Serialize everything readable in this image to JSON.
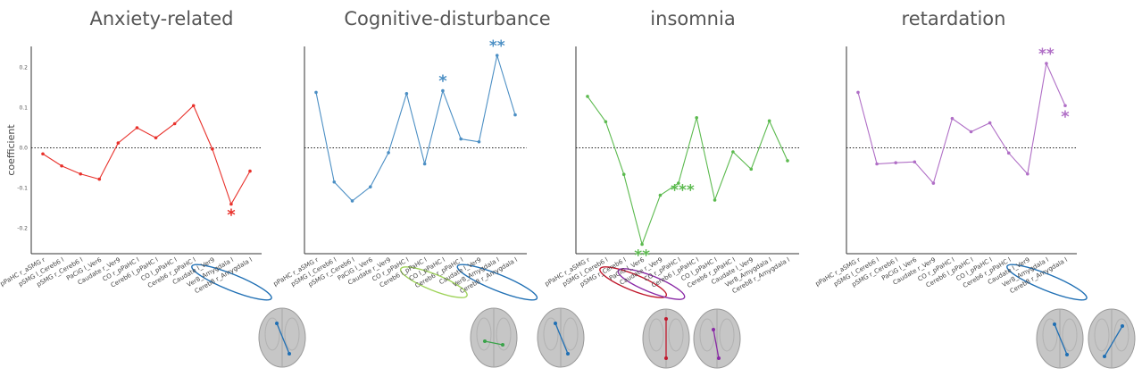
{
  "chart_data": [
    {
      "type": "line",
      "title": "Anxiety-related",
      "ylabel": "coefficient",
      "yticks": [
        "0.2",
        "0.1",
        "0.0",
        "-0.1",
        "-0.2"
      ],
      "ylim": [
        -0.26,
        0.25
      ],
      "color": "#e8312b",
      "x": [
        "pPaHC r_aSMG r",
        "pSMG l_Cereb6 l",
        "pSMG r_Cereb6 l",
        "PaCiG l_Ver6",
        "Caudate r_Ver9",
        "CO r_pPaHC l",
        "Cereb6 l_pPaHC l",
        "CO l_pPaHC l",
        "Cereb6 r_pPaHC l",
        "Caudate l_Ver9",
        "Ver8_Amygdala l",
        "Cereb8 r_Amygdala l"
      ],
      "values": [
        -0.015,
        -0.045,
        -0.065,
        -0.078,
        0.012,
        0.05,
        0.025,
        0.06,
        0.105,
        -0.003,
        -0.14,
        -0.058
      ],
      "annotations": [
        {
          "index": 10,
          "text": "*",
          "placement": "below"
        }
      ],
      "highlighted": [
        10,
        11
      ],
      "highlight_colors": [
        "#1f6fb4"
      ]
    },
    {
      "type": "line",
      "title": "Cognitive-disturbance",
      "ylim": [
        -0.26,
        0.25
      ],
      "color": "#4c8fc4",
      "x": [
        "pPaHC r_aSMG r",
        "pSMG l_Cereb6 l",
        "pSMG r_Cereb6 l",
        "PaCiG l_Ver6",
        "Caudate r_Ver9",
        "CO r_pPaHC l",
        "Cereb6 l_pPaHC l",
        "CO l_pPaHC l",
        "Cereb6 r_pPaHC l",
        "Caudate l_Ver9",
        "Ver8_Amygdala l",
        "Cereb8 r_Amygdala l"
      ],
      "values": [
        0.138,
        -0.085,
        -0.132,
        -0.097,
        -0.012,
        0.135,
        -0.04,
        0.142,
        0.022,
        0.015,
        0.23,
        0.082
      ],
      "annotations": [
        {
          "index": 7,
          "text": "*",
          "placement": "above"
        },
        {
          "index": 10,
          "text": "**",
          "placement": "above"
        }
      ],
      "highlighted": [
        7,
        10,
        11
      ],
      "highlight_colors": [
        "#9fd35a",
        "#1f6fb4"
      ]
    },
    {
      "type": "line",
      "title": "insomnia",
      "ylim": [
        -0.26,
        0.25
      ],
      "color": "#5cba4f",
      "x": [
        "pPaHC r_aSMG r",
        "pSMG l_Cereb6 l",
        "pSMG r_Cereb6 l",
        "PaCiG l_Ver6",
        "Caudate r_Ver9",
        "CO r_pPaHC l",
        "Cereb6 l_pPaHC l",
        "CO l_pPaHC l",
        "Cereb6 r_pPaHC l",
        "Caudate l_Ver9",
        "Ver8_Amygdala l",
        "Cereb8 r_Amygdala l"
      ],
      "values": [
        0.128,
        0.065,
        -0.066,
        -0.24,
        -0.118,
        -0.088,
        0.075,
        -0.13,
        -0.01,
        -0.053,
        0.067,
        -0.032
      ],
      "annotations": [
        {
          "index": 3,
          "text": "**",
          "placement": "below"
        },
        {
          "index": 4,
          "text": "***",
          "placement": "right"
        }
      ],
      "highlighted": [
        3,
        4
      ],
      "highlight_colors": [
        "#c0182c",
        "#8a2aa6"
      ]
    },
    {
      "type": "line",
      "title": "retardation",
      "ylim": [
        -0.26,
        0.25
      ],
      "color": "#b06fc6",
      "x": [
        "pPaHC r_aSMG r",
        "pSMG l_Cereb6 l",
        "pSMG r_Cereb6 l",
        "PaCiG l_Ver6",
        "Caudate r_Ver9",
        "CO r_pPaHC l",
        "Cereb6 l_pPaHC l",
        "CO l_pPaHC l",
        "Cereb6 r_pPaHC l",
        "Caudate l_Ver9",
        "Ver8_Amygdala l",
        "Cereb8 r_Amygdala l"
      ],
      "values": [
        0.138,
        -0.04,
        -0.037,
        -0.035,
        -0.088,
        0.073,
        0.04,
        0.062,
        -0.013,
        -0.065,
        0.21,
        0.105
      ],
      "annotations": [
        {
          "index": 10,
          "text": "**",
          "placement": "above"
        },
        {
          "index": 11,
          "text": "*",
          "placement": "below"
        }
      ],
      "highlighted": [
        10,
        11
      ],
      "highlight_colors": [
        "#1f6fb4"
      ]
    }
  ],
  "brains": [
    {
      "color": "#1f6fb4"
    },
    {
      "color": "#3aa34a"
    },
    {
      "color": "#1f6fb4"
    },
    {
      "color": "#c0182c"
    },
    {
      "color": "#8a2aa6"
    },
    {
      "color": "#1f6fb4"
    },
    {
      "color": "#1f6fb4"
    }
  ],
  "style": {
    "axis_color": "#333333",
    "zero_line_color": "#222222",
    "brain_color": "#c6c6c6"
  }
}
